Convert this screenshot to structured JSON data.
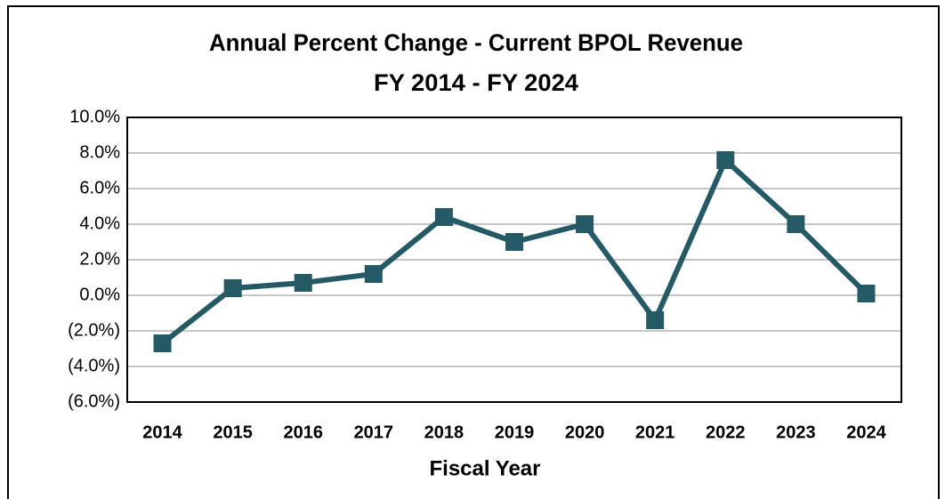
{
  "chart_data": {
    "type": "line",
    "title": "Annual Percent Change - Current BPOL Revenue",
    "subtitle": "FY 2014 - FY 2024",
    "x_label": "Fiscal Year",
    "categories": [
      "2014",
      "2015",
      "2016",
      "2017",
      "2018",
      "2019",
      "2020",
      "2021",
      "2022",
      "2023",
      "2024"
    ],
    "series": [
      {
        "name": "Annual Percent Change",
        "color": "#235a66",
        "values": [
          -2.7,
          0.4,
          0.7,
          1.2,
          4.4,
          3.0,
          4.0,
          -1.4,
          7.6,
          4.0,
          0.1
        ]
      }
    ],
    "ylim": [
      -6,
      10
    ],
    "yticks": [
      {
        "value": -6,
        "label": "(6.0%)"
      },
      {
        "value": -4,
        "label": "(4.0%)"
      },
      {
        "value": -2,
        "label": "(2.0%)"
      },
      {
        "value": 0,
        "label": "0.0%"
      },
      {
        "value": 2,
        "label": "2.0%"
      },
      {
        "value": 4,
        "label": "4.0%"
      },
      {
        "value": 6,
        "label": "6.0%"
      },
      {
        "value": 8,
        "label": "8.0%"
      },
      {
        "value": 10,
        "label": "10.0%"
      }
    ],
    "grid": true
  }
}
